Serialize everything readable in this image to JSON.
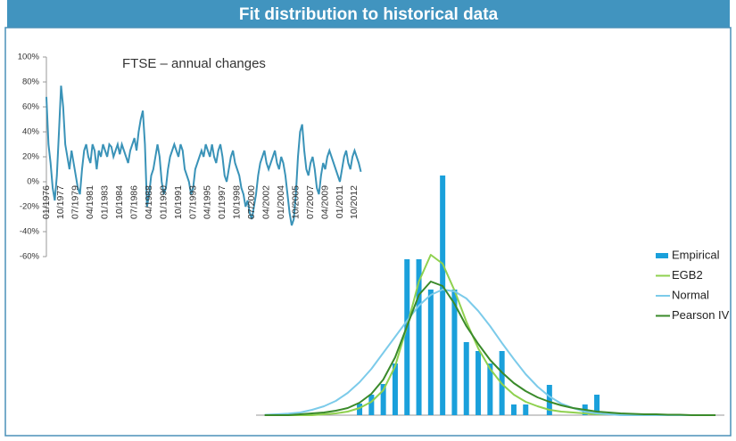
{
  "header": {
    "title": "Fit distribution to historical data"
  },
  "chart_data": [
    {
      "type": "line",
      "title": "FTSE – annual changes",
      "color": "#3a93b8",
      "ylim": [
        -60,
        100
      ],
      "yticks": [
        {
          "value": -60,
          "label": "-60%"
        },
        {
          "value": -40,
          "label": "-40%"
        },
        {
          "value": -20,
          "label": "-20%"
        },
        {
          "value": 0,
          "label": "0%"
        },
        {
          "value": 20,
          "label": "20%"
        },
        {
          "value": 40,
          "label": "40%"
        },
        {
          "value": 60,
          "label": "60%"
        },
        {
          "value": 80,
          "label": "80%"
        },
        {
          "value": 100,
          "label": "100%"
        }
      ],
      "categories": [
        "01/1976",
        null,
        null,
        null,
        null,
        null,
        null,
        "10/1977",
        null,
        null,
        null,
        null,
        null,
        null,
        "07/1979",
        null,
        null,
        null,
        null,
        null,
        null,
        "04/1981",
        null,
        null,
        null,
        null,
        null,
        null,
        "01/1983",
        null,
        null,
        null,
        null,
        null,
        null,
        "10/1984",
        null,
        null,
        null,
        null,
        null,
        null,
        "07/1986",
        null,
        null,
        null,
        null,
        null,
        null,
        "04/1988",
        null,
        null,
        null,
        null,
        null,
        null,
        "01/1990",
        null,
        null,
        null,
        null,
        null,
        null,
        "10/1991",
        null,
        null,
        null,
        null,
        null,
        null,
        "07/1993",
        null,
        null,
        null,
        null,
        null,
        null,
        "04/1995",
        null,
        null,
        null,
        null,
        null,
        null,
        "01/1997",
        null,
        null,
        null,
        null,
        null,
        null,
        "10/1998",
        null,
        null,
        null,
        null,
        null,
        null,
        "07/2000",
        null,
        null,
        null,
        null,
        null,
        null,
        "04/2002",
        null,
        null,
        null,
        null,
        null,
        null,
        "01/2004",
        null,
        null,
        null,
        null,
        null,
        null,
        "10/2005",
        null,
        null,
        null,
        null,
        null,
        null,
        "07/2007",
        null,
        null,
        null,
        null,
        null,
        null,
        "04/2009",
        null,
        null,
        null,
        null,
        null,
        null,
        "01/2011",
        null,
        null,
        null,
        null,
        null,
        null,
        "10/2012",
        null,
        null,
        null
      ],
      "values": [
        68,
        30,
        15,
        -5,
        -15,
        5,
        40,
        77,
        60,
        30,
        20,
        10,
        25,
        15,
        5,
        -5,
        -10,
        10,
        25,
        30,
        20,
        15,
        30,
        25,
        10,
        25,
        20,
        30,
        25,
        20,
        30,
        28,
        20,
        25,
        30,
        22,
        30,
        25,
        20,
        15,
        25,
        30,
        35,
        25,
        40,
        50,
        57,
        30,
        -20,
        -10,
        5,
        10,
        20,
        30,
        20,
        0,
        -10,
        -5,
        10,
        20,
        25,
        30,
        25,
        20,
        30,
        25,
        10,
        5,
        0,
        -10,
        -5,
        10,
        15,
        20,
        25,
        20,
        30,
        25,
        20,
        30,
        20,
        15,
        25,
        30,
        20,
        5,
        0,
        10,
        20,
        25,
        15,
        10,
        5,
        -5,
        -10,
        -20,
        -15,
        -25,
        -30,
        -20,
        -10,
        5,
        15,
        20,
        25,
        15,
        10,
        15,
        20,
        25,
        15,
        10,
        20,
        15,
        5,
        -10,
        -25,
        -35,
        -30,
        -10,
        20,
        40,
        46,
        25,
        10,
        5,
        15,
        20,
        10,
        -5,
        -10,
        5,
        15,
        10,
        20,
        25,
        20,
        15,
        10,
        5,
        0,
        10,
        20,
        25,
        15,
        10,
        20,
        25,
        20,
        15,
        8
      ]
    },
    {
      "type": "bar",
      "legend": "right",
      "ylim": [
        0,
        280
      ],
      "categories": [
        null,
        null,
        null,
        null,
        null,
        null,
        null,
        null,
        null,
        null,
        null,
        null,
        null,
        null,
        null,
        null,
        null,
        null,
        null,
        null,
        null,
        null,
        null,
        null,
        null,
        null,
        null,
        null,
        null,
        null,
        null,
        null,
        null,
        null,
        null,
        null,
        null,
        null,
        null
      ],
      "series": [
        {
          "name": "Empirical",
          "type": "bar",
          "color": "#1aa0db",
          "values": [
            0,
            0,
            0,
            0,
            0,
            0,
            0,
            0,
            13,
            23,
            35,
            58,
            175,
            175,
            141,
            269,
            141,
            82,
            72,
            58,
            72,
            12,
            12,
            0,
            34,
            0,
            0,
            12,
            23,
            0,
            0,
            0,
            0,
            0,
            0,
            0,
            0,
            0,
            0
          ]
        },
        {
          "name": "EGB2",
          "type": "line",
          "color": "#8fd14f",
          "values": [
            0,
            0,
            0,
            0,
            0,
            1,
            2,
            4,
            8,
            15,
            28,
            55,
            100,
            150,
            180,
            170,
            140,
            105,
            75,
            52,
            35,
            23,
            15,
            10,
            6,
            4,
            3,
            2,
            1,
            1,
            1,
            0,
            0,
            0,
            0,
            0,
            0,
            0,
            0
          ]
        },
        {
          "name": "Normal",
          "type": "line",
          "color": "#7ccbea",
          "values": [
            0.4,
            1,
            1.7,
            3,
            6,
            10,
            16,
            25,
            37,
            52,
            70,
            88,
            106,
            123,
            135,
            141,
            139,
            131,
            117,
            100,
            81,
            63,
            46,
            32,
            21,
            13,
            8,
            4,
            2,
            1,
            0,
            0,
            0,
            0,
            0,
            0,
            0,
            0,
            0
          ]
        },
        {
          "name": "Pearson IV",
          "type": "line",
          "color": "#3a8a2a",
          "values": [
            0,
            0,
            0,
            1,
            2,
            3,
            5,
            8,
            14,
            24,
            40,
            65,
            100,
            135,
            150,
            145,
            125,
            100,
            80,
            62,
            48,
            36,
            27,
            20,
            15,
            11,
            8,
            6,
            4,
            3,
            2,
            1.5,
            1,
            1,
            0.5,
            0.5,
            0,
            0,
            0
          ]
        }
      ]
    }
  ]
}
